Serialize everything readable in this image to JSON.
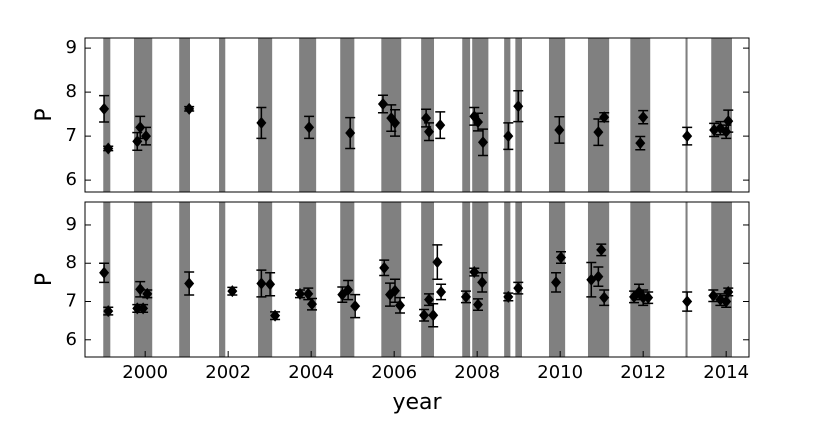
{
  "chart_data": [
    {
      "type": "scatter",
      "y_label": "P",
      "marker_color": "#000000",
      "band_color": "#808080",
      "xlim": [
        1998.55,
        2014.55
      ],
      "ylim": [
        5.73,
        9.23
      ],
      "yticks": [
        6,
        7,
        8,
        9
      ],
      "bands": [
        [
          1998.99,
          1999.16
        ],
        [
          1999.73,
          2000.17
        ],
        [
          2000.82,
          2001.08
        ],
        [
          2001.78,
          2001.93
        ],
        [
          2002.72,
          2003.06
        ],
        [
          2003.71,
          2004.12
        ],
        [
          2004.7,
          2005.04
        ],
        [
          2005.69,
          2006.17
        ],
        [
          2006.65,
          2006.96
        ],
        [
          2007.64,
          2007.83
        ],
        [
          2007.88,
          2008.27
        ],
        [
          2008.65,
          2008.8
        ],
        [
          2008.92,
          2009.08
        ],
        [
          2009.73,
          2010.12
        ],
        [
          2010.67,
          2011.18
        ],
        [
          2011.69,
          2012.17
        ],
        [
          2013.02,
          2013.07
        ],
        [
          2013.64,
          2014.14
        ]
      ],
      "x": [
        1999.01,
        1999.11,
        1999.81,
        1999.88,
        2000.02,
        2001.06,
        2002.8,
        2003.95,
        2004.94,
        2005.73,
        2005.93,
        2006.02,
        2006.77,
        2006.84,
        2007.11,
        2007.93,
        2008.02,
        2008.14,
        2008.75,
        2008.99,
        2009.98,
        2010.92,
        2011.06,
        2011.93,
        2012.0,
        2013.06,
        2013.71,
        2013.86,
        2014.0,
        2014.05
      ],
      "values": [
        7.62,
        6.72,
        6.88,
        7.2,
        7.0,
        7.62,
        7.3,
        7.2,
        7.07,
        7.73,
        7.41,
        7.3,
        7.41,
        7.1,
        7.25,
        7.45,
        7.32,
        6.86,
        7.0,
        7.68,
        7.14,
        7.09,
        7.43,
        6.84,
        7.43,
        7.0,
        7.14,
        7.18,
        7.1,
        7.34
      ],
      "errors": [
        0.3,
        0.05,
        0.2,
        0.25,
        0.2,
        0.05,
        0.35,
        0.25,
        0.35,
        0.2,
        0.3,
        0.3,
        0.2,
        0.2,
        0.3,
        0.2,
        0.2,
        0.3,
        0.3,
        0.35,
        0.3,
        0.3,
        0.1,
        0.15,
        0.15,
        0.2,
        0.15,
        0.15,
        0.15,
        0.25
      ]
    },
    {
      "type": "scatter",
      "y_label": "P",
      "x_label": "year",
      "marker_color": "#000000",
      "band_color": "#808080",
      "xlim": [
        1998.55,
        2014.55
      ],
      "ylim": [
        5.55,
        9.6
      ],
      "yticks": [
        6,
        7,
        8,
        9
      ],
      "xticks": [
        2000,
        2002,
        2004,
        2006,
        2008,
        2010,
        2012,
        2014
      ],
      "bands": [
        [
          1998.99,
          1999.16
        ],
        [
          1999.73,
          2000.17
        ],
        [
          2000.82,
          2001.08
        ],
        [
          2001.78,
          2001.93
        ],
        [
          2002.72,
          2003.06
        ],
        [
          2003.71,
          2004.12
        ],
        [
          2004.7,
          2005.04
        ],
        [
          2005.69,
          2006.17
        ],
        [
          2006.65,
          2006.96
        ],
        [
          2007.64,
          2007.83
        ],
        [
          2007.88,
          2008.27
        ],
        [
          2008.65,
          2008.8
        ],
        [
          2008.92,
          2009.08
        ],
        [
          2009.73,
          2010.12
        ],
        [
          2010.67,
          2011.18
        ],
        [
          2011.69,
          2012.17
        ],
        [
          2013.02,
          2013.07
        ],
        [
          2013.64,
          2014.14
        ]
      ],
      "x": [
        1999.01,
        1999.11,
        1999.81,
        1999.88,
        1999.95,
        2000.05,
        2001.06,
        2002.1,
        2002.8,
        2003.01,
        2003.13,
        2003.73,
        2003.93,
        2004.02,
        2004.75,
        2004.89,
        2005.06,
        2005.76,
        2005.9,
        2006.02,
        2006.14,
        2006.72,
        2006.84,
        2006.94,
        2007.04,
        2007.13,
        2007.73,
        2007.93,
        2008.02,
        2008.12,
        2008.75,
        2008.99,
        2009.9,
        2010.02,
        2010.75,
        2010.92,
        2010.99,
        2011.06,
        2011.78,
        2011.9,
        2012.0,
        2012.12,
        2013.06,
        2013.69,
        2013.86,
        2014.0,
        2014.05
      ],
      "values": [
        7.75,
        6.75,
        6.82,
        7.32,
        6.82,
        7.2,
        7.47,
        7.27,
        7.47,
        7.45,
        6.63,
        7.2,
        7.2,
        6.93,
        7.18,
        7.3,
        6.88,
        7.88,
        7.18,
        7.28,
        6.9,
        6.64,
        7.05,
        6.64,
        8.03,
        7.25,
        7.12,
        7.77,
        6.92,
        7.5,
        7.12,
        7.35,
        7.5,
        8.15,
        7.57,
        7.65,
        8.35,
        7.1,
        7.12,
        7.25,
        7.1,
        7.1,
        7.0,
        7.15,
        7.05,
        7.0,
        7.25
      ],
      "errors": [
        0.25,
        0.1,
        0.1,
        0.2,
        0.1,
        0.1,
        0.3,
        0.1,
        0.35,
        0.3,
        0.1,
        0.1,
        0.15,
        0.15,
        0.2,
        0.25,
        0.3,
        0.2,
        0.3,
        0.3,
        0.2,
        0.15,
        0.15,
        0.3,
        0.45,
        0.2,
        0.15,
        0.1,
        0.15,
        0.25,
        0.1,
        0.15,
        0.25,
        0.15,
        0.45,
        0.25,
        0.15,
        0.2,
        0.15,
        0.2,
        0.2,
        0.15,
        0.25,
        0.15,
        0.15,
        0.15,
        0.1
      ]
    }
  ]
}
